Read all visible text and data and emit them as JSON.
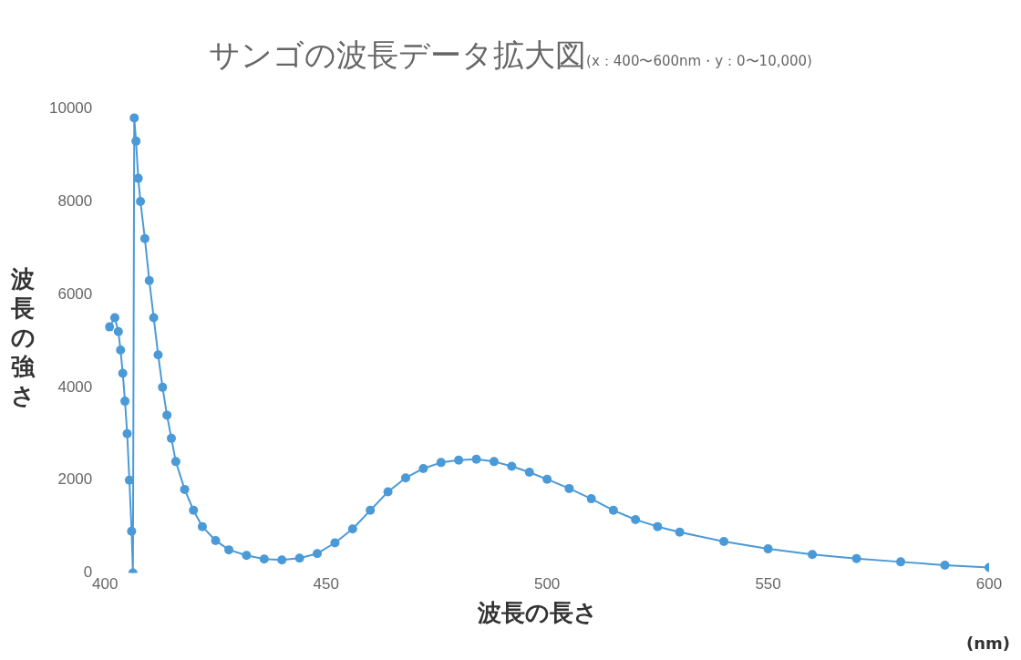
{
  "chart_data": {
    "type": "line",
    "title": "サンゴの波長データ拡大図",
    "subtitle": "(x：400〜600nm・y：0〜10,000)",
    "xlabel": "波長の長さ",
    "ylabel": "波長の強さ",
    "annotations": [
      "(nm)"
    ],
    "x": [
      401,
      402.2,
      403,
      403.5,
      404,
      404.5,
      405,
      405.5,
      406,
      406.3,
      406.6,
      407,
      407.5,
      408,
      409,
      410,
      411,
      412,
      413,
      414,
      415,
      416,
      418,
      420,
      422,
      425,
      428,
      432,
      436,
      440,
      444,
      448,
      452,
      456,
      460,
      464,
      468,
      472,
      476,
      480,
      484,
      488,
      492,
      496,
      500,
      505,
      510,
      515,
      520,
      525,
      530,
      540,
      550,
      560,
      570,
      580,
      590,
      600
    ],
    "series": [
      {
        "color": "#4a9ad8",
        "values": [
          5300,
          5500,
          5200,
          4800,
          4300,
          3700,
          3000,
          2000,
          900,
          0,
          9800,
          9300,
          8500,
          8000,
          7200,
          6300,
          5500,
          4700,
          4000,
          3400,
          2900,
          2400,
          1800,
          1350,
          1000,
          700,
          500,
          380,
          300,
          280,
          320,
          420,
          650,
          950,
          1350,
          1750,
          2050,
          2250,
          2380,
          2430,
          2450,
          2400,
          2300,
          2170,
          2020,
          1820,
          1600,
          1350,
          1150,
          1000,
          880,
          680,
          520,
          400,
          310,
          240,
          170,
          120
        ]
      }
    ],
    "xlim": [
      400,
      600
    ],
    "xticks": [
      400,
      450,
      500,
      550,
      600
    ],
    "ylim": [
      0,
      10000
    ],
    "yticks": [
      0,
      2000,
      4000,
      6000,
      8000,
      10000
    ],
    "grid": false,
    "legend": false,
    "marker": "circle",
    "line_style": "solid"
  }
}
